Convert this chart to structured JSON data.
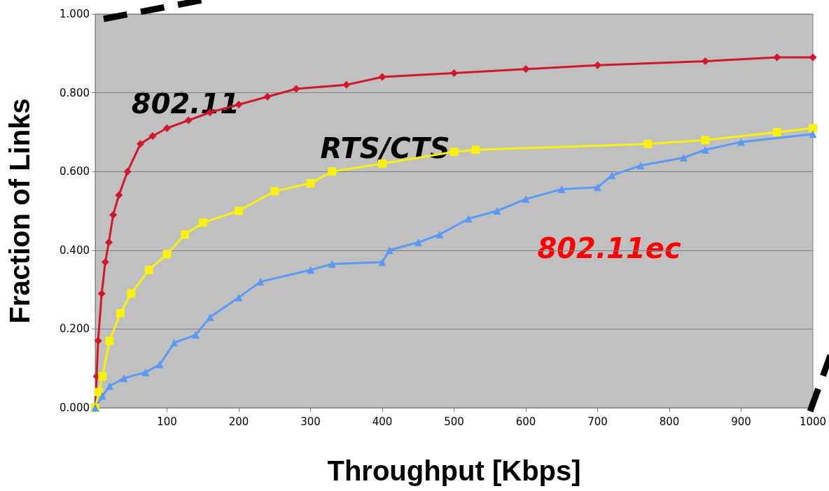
{
  "chart_data": {
    "type": "line",
    "xlabel": "Throughput [Kbps]",
    "ylabel": "Fraction of Links",
    "xlim": [
      0,
      1000
    ],
    "ylim": [
      0,
      1
    ],
    "xticks": [
      100,
      200,
      300,
      400,
      500,
      600,
      700,
      800,
      900,
      1000
    ],
    "yticks": [
      {
        "value": 0,
        "label": "0.000"
      },
      {
        "value": 0.2,
        "label": "0.200"
      },
      {
        "value": 0.4,
        "label": "0.400"
      },
      {
        "value": 0.6,
        "label": "0.600"
      },
      {
        "value": 0.8,
        "label": "0.800"
      },
      {
        "value": 1,
        "label": "1.000"
      }
    ],
    "grid": "y",
    "series": [
      {
        "name": "802.11",
        "color": "#d0182a",
        "marker": "diamond",
        "x": [
          0,
          2,
          4,
          9,
          14,
          19,
          25,
          33,
          45,
          63,
          80,
          100,
          130,
          160,
          200,
          240,
          280,
          350,
          400,
          500,
          600,
          700,
          850,
          950,
          1000
        ],
        "values": [
          0,
          0.08,
          0.17,
          0.29,
          0.37,
          0.42,
          0.49,
          0.54,
          0.6,
          0.67,
          0.69,
          0.71,
          0.73,
          0.75,
          0.77,
          0.79,
          0.81,
          0.82,
          0.84,
          0.85,
          0.86,
          0.87,
          0.88,
          0.89,
          0.89
        ]
      },
      {
        "name": "RTS/CTS",
        "color": "#f7f011",
        "marker": "square",
        "x": [
          0,
          5,
          10,
          20,
          35,
          50,
          75,
          100,
          125,
          150,
          200,
          250,
          300,
          330,
          400,
          500,
          530,
          770,
          850,
          950,
          1000
        ],
        "values": [
          0,
          0.04,
          0.08,
          0.17,
          0.24,
          0.29,
          0.35,
          0.39,
          0.44,
          0.47,
          0.5,
          0.55,
          0.57,
          0.6,
          0.62,
          0.65,
          0.655,
          0.67,
          0.68,
          0.7,
          0.71
        ]
      },
      {
        "name": "802.11ec",
        "color": "#5a9af5",
        "marker": "triangle",
        "x": [
          0,
          10,
          20,
          40,
          70,
          90,
          110,
          140,
          160,
          200,
          230,
          300,
          330,
          400,
          410,
          450,
          480,
          520,
          560,
          600,
          650,
          700,
          720,
          760,
          820,
          850,
          900,
          1000
        ],
        "values": [
          0,
          0.03,
          0.055,
          0.075,
          0.09,
          0.11,
          0.165,
          0.185,
          0.23,
          0.28,
          0.32,
          0.35,
          0.365,
          0.37,
          0.4,
          0.42,
          0.44,
          0.48,
          0.5,
          0.53,
          0.555,
          0.56,
          0.59,
          0.615,
          0.635,
          0.655,
          0.675,
          0.695
        ]
      }
    ]
  }
}
